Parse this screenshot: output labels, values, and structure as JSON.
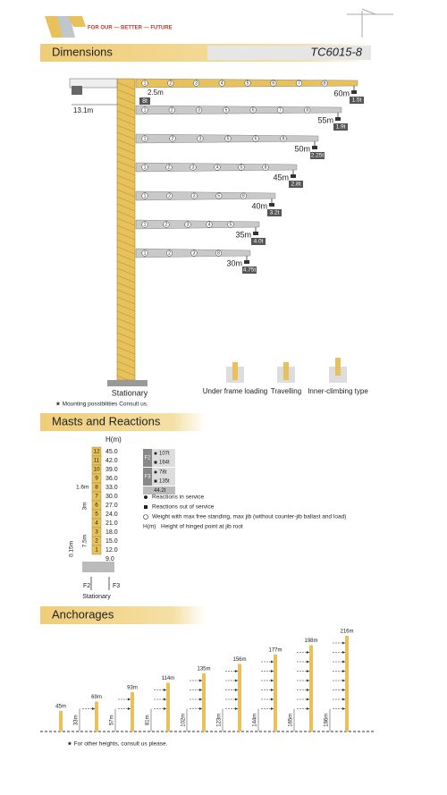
{
  "header": {
    "tagline": "FOR OUR — BETTER — FUTURE"
  },
  "dimensions": {
    "title": "Dimensions",
    "model": "TC6015-8",
    "counter_jib": "13.1m",
    "jib_offset": "2.5m",
    "jib_root_load": "8t",
    "jibs": [
      {
        "length": "60m",
        "load": "1.5t",
        "sections": [
          1,
          2,
          3,
          4,
          5,
          6,
          7,
          8
        ]
      },
      {
        "length": "55m",
        "load": "1.9t",
        "sections": [
          1,
          2,
          3,
          5,
          6,
          7,
          8
        ]
      },
      {
        "length": "50m",
        "load": "2.25t",
        "sections": [
          1,
          2,
          3,
          5,
          6,
          8
        ]
      },
      {
        "length": "45m",
        "load": "2.8t",
        "sections": [
          1,
          2,
          3,
          4,
          5,
          8
        ]
      },
      {
        "length": "40m",
        "load": "3.2t",
        "sections": [
          1,
          2,
          3,
          5,
          8
        ]
      },
      {
        "length": "35m",
        "load": "4.0t",
        "sections": [
          1,
          2,
          3,
          4,
          5
        ]
      },
      {
        "length": "30m",
        "load": "4.75t",
        "sections": [
          1,
          2,
          3,
          8
        ]
      }
    ],
    "tower": "Stationary",
    "bases": [
      "Under frame loading",
      "Travelling",
      "Inner-climbing type"
    ],
    "note": "★ Mounting possibilities Consult us."
  },
  "masts": {
    "title": "Masts and Reactions",
    "axis": "H(m)",
    "sections": [
      {
        "n": "12",
        "h": "45.0"
      },
      {
        "n": "11",
        "h": "42.0"
      },
      {
        "n": "10",
        "h": "39.0"
      },
      {
        "n": "9",
        "h": "36.0"
      },
      {
        "n": "8",
        "h": "33.0"
      },
      {
        "n": "7",
        "h": "30.0"
      },
      {
        "n": "6",
        "h": "27.0"
      },
      {
        "n": "5",
        "h": "24.0"
      },
      {
        "n": "4",
        "h": "21.0"
      },
      {
        "n": "3",
        "h": "18.0"
      },
      {
        "n": "2",
        "h": "15.0"
      },
      {
        "n": "1",
        "h": "12.0"
      }
    ],
    "base_h": "9.0",
    "dims": [
      "1.6m",
      "3m",
      "7.5m",
      "0.15m"
    ],
    "forces": [
      "F2",
      "F3"
    ],
    "base": "Stationary",
    "reactions": [
      {
        "force": "F2",
        "in_service": "107t",
        "out_service": "164t"
      },
      {
        "force": "F3",
        "in_service": "78t",
        "out_service": "135t"
      }
    ],
    "weight": "44.2t",
    "legend": [
      "Reactions in service",
      "Reactions out of service",
      "Weight with max free standing, max jib (without counter-jib ballast and load)",
      {
        "key": "H(m)",
        "text": "Height of hinged point at jib root"
      }
    ]
  },
  "anchorages": {
    "title": "Anchorages",
    "columns": [
      {
        "height": "45m"
      },
      {
        "height": "69m",
        "first_anchor": "33m"
      },
      {
        "height": "93m",
        "first_anchor": "57m"
      },
      {
        "height": "114m",
        "first_anchor": "81m"
      },
      {
        "height": "135m",
        "first_anchor": "102m"
      },
      {
        "height": "156m",
        "first_anchor": "123m"
      },
      {
        "height": "177m",
        "first_anchor": "144m"
      },
      {
        "height": "198m",
        "first_anchor": "165m"
      },
      {
        "height": "216m",
        "first_anchor": "186m"
      }
    ],
    "note": "★ For other heights, consult us please."
  }
}
